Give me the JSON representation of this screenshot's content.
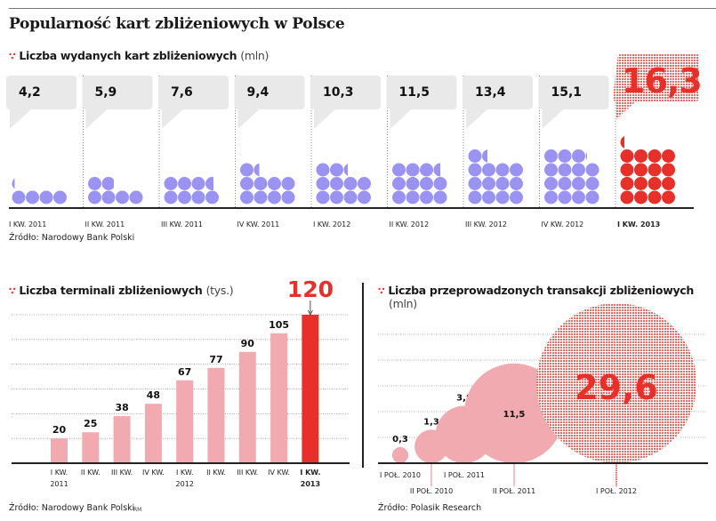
{
  "title": "Popularność kart zbliżeniowych w Polsce",
  "colors": {
    "accent": "#e8302a",
    "purple": "#9b93f2",
    "pink": "#f0aab0",
    "bubble": "#e9e9e9",
    "axis": "#222222"
  },
  "sections": {
    "cards": {
      "title": "Liczba wydanych kart zbliżeniowych",
      "unit": "(mln)",
      "source": "Źródło: Narodowy Bank Polski"
    },
    "terminals": {
      "title": "Liczba terminali zbliżeniowych",
      "unit": "(tys.)",
      "source": "Źródło: Narodowy Bank Polski",
      "credit": "RM"
    },
    "transactions": {
      "title": "Liczba przeprowadzonych transakcji zbliżeniowych",
      "unit": "(mln)",
      "source": "Źródło: Polasik Research"
    }
  },
  "chart_data": [
    {
      "type": "bar",
      "title": "Liczba wydanych kart zbliżeniowych (mln)",
      "note": "pictogram: each dot ≈ 1 mln cards, values shown in speech bubbles",
      "categories": [
        "I KW. 2011",
        "II KW. 2011",
        "III KW. 2011",
        "IV KW. 2011",
        "I KW. 2012",
        "II KW. 2012",
        "III KW. 2012",
        "IV KW. 2012",
        "I KW. 2013"
      ],
      "values": [
        4.2,
        5.9,
        7.6,
        9.4,
        10.3,
        11.5,
        13.4,
        15.1,
        16.3
      ],
      "labels": [
        "4,2",
        "5,9",
        "7,6",
        "9,4",
        "10,3",
        "11,5",
        "13,4",
        "15,1",
        "16,3"
      ],
      "highlight_index": 8
    },
    {
      "type": "bar",
      "title": "Liczba terminali zbliżeniowych (tys.)",
      "categories": [
        [
          "I KW.",
          "2011"
        ],
        [
          "II KW.",
          ""
        ],
        [
          "III KW.",
          ""
        ],
        [
          "IV KW.",
          ""
        ],
        [
          "I KW.",
          "2012"
        ],
        [
          "II KW.",
          ""
        ],
        [
          "III KW.",
          ""
        ],
        [
          "IV KW.",
          ""
        ],
        [
          "I KW.",
          "2013"
        ]
      ],
      "values": [
        20,
        25,
        38,
        48,
        67,
        77,
        90,
        105,
        120
      ],
      "labels": [
        "20",
        "25",
        "38",
        "48",
        "67",
        "77",
        "90",
        "105",
        "120"
      ],
      "ylim": [
        0,
        125
      ],
      "grid": true,
      "highlight_index": 8
    },
    {
      "type": "scatter",
      "subtype": "bubble",
      "title": "Liczba przeprowadzonych transakcji zbliżeniowych (mln)",
      "categories": [
        "I POŁ. 2010",
        "II POŁ. 2010",
        "I POŁ. 2011",
        "II POŁ. 2011",
        "I POŁ. 2012"
      ],
      "values": [
        0.3,
        1.3,
        3.8,
        11.5,
        29.6
      ],
      "labels": [
        "0,3",
        "1,3",
        "3,8",
        "11,5",
        "29,6"
      ],
      "grid": true,
      "highlight_index": 4
    }
  ]
}
